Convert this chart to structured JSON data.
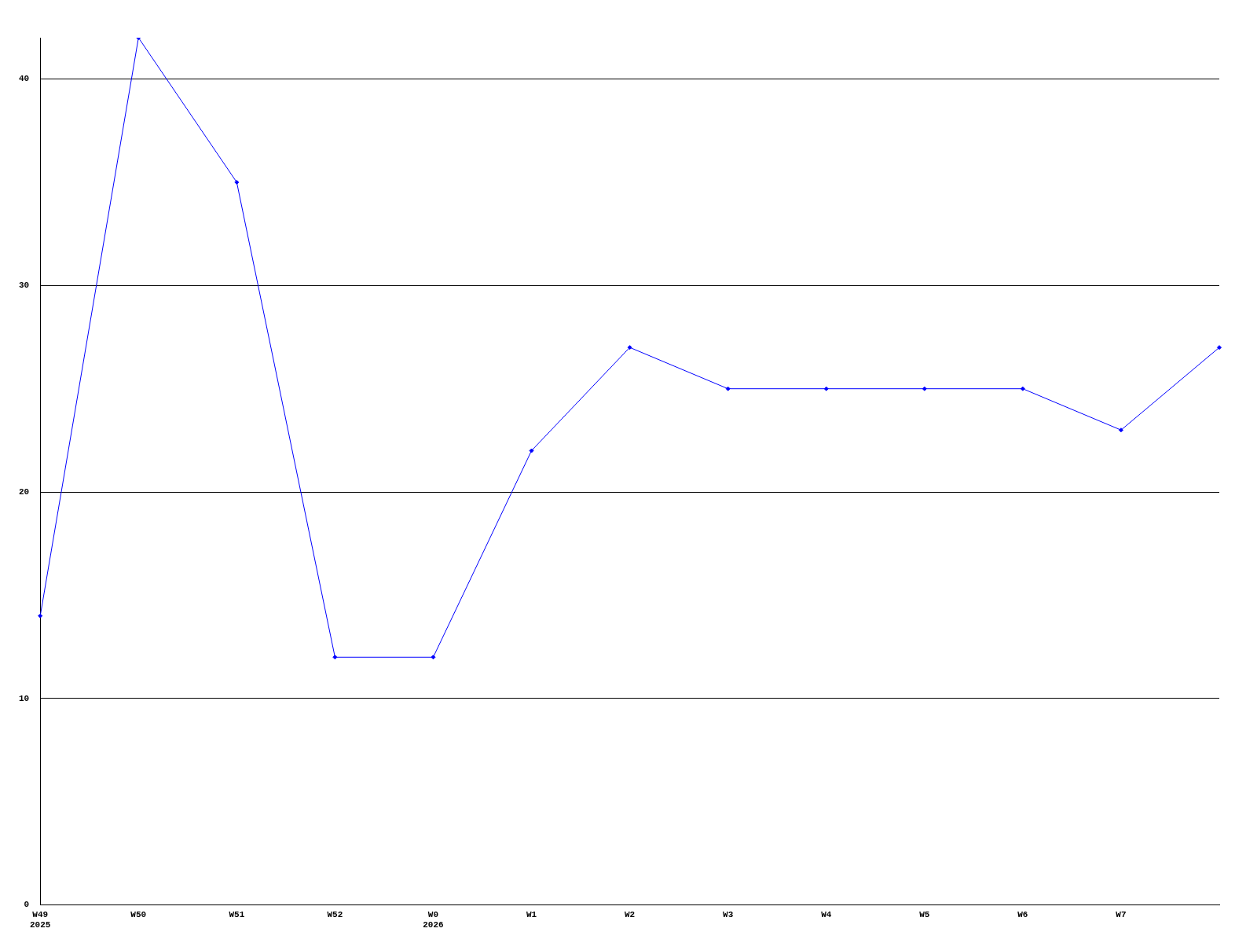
{
  "chart_data": {
    "type": "line",
    "categories": [
      "W49\n2025",
      "W50",
      "W51",
      "W52",
      "W0\n2026",
      "W1",
      "W2",
      "W3",
      "W4",
      "W5",
      "W6",
      "W7",
      null
    ],
    "series": [
      {
        "color": "#0000ff",
        "values": [
          14,
          42,
          35,
          12,
          12,
          22,
          27,
          25,
          25,
          25,
          25,
          23,
          27
        ]
      }
    ],
    "ylim": [
      0,
      42
    ],
    "yticks": [
      0,
      10,
      20,
      30,
      40
    ],
    "grid": "y",
    "legend": false,
    "marker": "diamond",
    "line_style": "solid"
  }
}
